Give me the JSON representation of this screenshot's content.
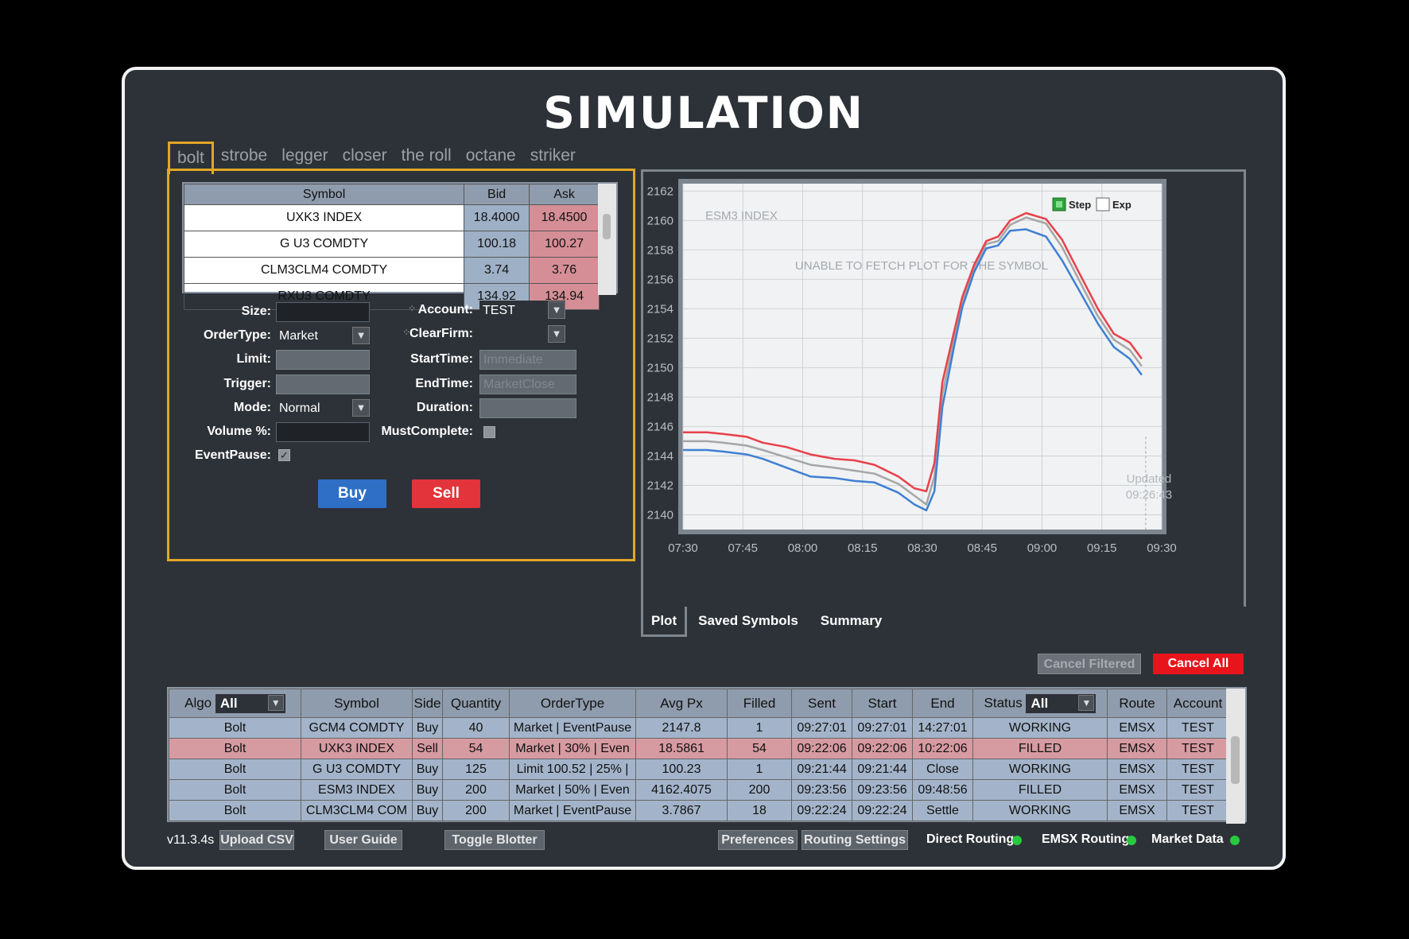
{
  "title": "SIMULATION",
  "algo_tabs": [
    "bolt",
    "strobe",
    "legger",
    "closer",
    "the roll",
    "octane",
    "striker"
  ],
  "symbols": {
    "headers": [
      "Symbol",
      "Bid",
      "Ask"
    ],
    "rows": [
      [
        "UXK3 INDEX",
        "18.4000",
        "18.4500"
      ],
      [
        "G U3 COMDTY",
        "100.18",
        "100.27"
      ],
      [
        "CLM3CLM4 COMDTY",
        "3.74",
        "3.76"
      ],
      [
        "RXU3 COMDTY",
        "134.92",
        "134.94"
      ]
    ]
  },
  "form": {
    "size_label": "Size:",
    "ordertype_label": "OrderType:",
    "ordertype_value": "Market",
    "limit_label": "Limit:",
    "trigger_label": "Trigger:",
    "mode_label": "Mode:",
    "mode_value": "Normal",
    "volume_label": "Volume %:",
    "eventpause_label": "EventPause:",
    "account_label": "Account:",
    "account_value": "TEST",
    "clearfirm_label": "ClearFirm:",
    "starttime_label": "StartTime:",
    "starttime_placeholder": "Immediate",
    "endtime_label": "EndTime:",
    "endtime_placeholder": "MarketClose",
    "duration_label": "Duration:",
    "mustcomplete_label": "MustComplete:",
    "buy_label": "Buy",
    "sell_label": "Sell"
  },
  "plot": {
    "symbol_label": "ESM3 INDEX",
    "error_text": "UNABLE TO FETCH PLOT FOR THE SYMBOL",
    "legend_step": "Step",
    "legend_exp": "Exp",
    "updated_label": "Updated",
    "updated_time": "09:26:43",
    "tabs": [
      "Plot",
      "Saved Symbols",
      "Summary"
    ]
  },
  "chart_data": {
    "type": "line",
    "title": "ESM3 INDEX",
    "x_ticks": [
      "07:30",
      "07:45",
      "08:00",
      "08:15",
      "08:30",
      "08:45",
      "09:00",
      "09:15",
      "09:30"
    ],
    "y_ticks": [
      2162,
      2160,
      2158,
      2156,
      2154,
      2152,
      2150,
      2148,
      2146,
      2144,
      2142,
      2140
    ],
    "ylim": [
      2139,
      2162.5
    ],
    "grid": true,
    "legend_position": "top-right",
    "colors": {
      "red": "#e8414a",
      "gray": "#a6a6a6",
      "blue": "#3f7fd3"
    },
    "x_minutes": [
      0,
      6,
      10,
      16,
      20,
      26,
      32,
      38,
      43,
      48,
      54,
      58,
      61,
      63,
      65,
      68,
      70,
      73,
      76,
      79,
      82,
      86,
      91,
      95,
      99,
      104,
      108,
      112,
      115
    ],
    "series_red": [
      2145.6,
      2145.6,
      2145.5,
      2145.3,
      2144.9,
      2144.6,
      2144.1,
      2143.8,
      2143.7,
      2143.4,
      2142.6,
      2141.8,
      2141.6,
      2143.5,
      2149.0,
      2152.5,
      2154.8,
      2157.0,
      2158.6,
      2158.9,
      2160.0,
      2160.5,
      2160.1,
      2158.7,
      2156.6,
      2154.0,
      2152.3,
      2151.7,
      2150.6
    ],
    "series_gray": [
      2145.0,
      2145.0,
      2144.9,
      2144.7,
      2144.4,
      2143.9,
      2143.4,
      2143.2,
      2143.0,
      2142.8,
      2142.1,
      2141.3,
      2140.7,
      2142.6,
      2148.2,
      2152.0,
      2154.5,
      2156.8,
      2158.4,
      2158.6,
      2159.7,
      2160.2,
      2159.8,
      2158.2,
      2156.1,
      2153.5,
      2151.9,
      2151.2,
      2150.1
    ],
    "series_blue": [
      2144.4,
      2144.4,
      2144.3,
      2144.1,
      2143.8,
      2143.2,
      2142.6,
      2142.5,
      2142.3,
      2142.2,
      2141.5,
      2140.7,
      2140.3,
      2141.6,
      2147.3,
      2151.5,
      2154.1,
      2156.5,
      2158.1,
      2158.3,
      2159.3,
      2159.4,
      2158.9,
      2157.3,
      2155.4,
      2153.0,
      2151.4,
      2150.6,
      2149.5
    ]
  },
  "actions": {
    "cancel_filtered": "Cancel Filtered",
    "cancel_all": "Cancel All"
  },
  "blotter": {
    "algo_header": "Algo",
    "algo_filter": "All",
    "status_header": "Status",
    "status_filter": "All",
    "headers": [
      "Symbol",
      "Side",
      "Quantity",
      "OrderType",
      "Avg Px",
      "Filled",
      "Sent",
      "Start",
      "End",
      "Route",
      "Account"
    ],
    "rows": [
      {
        "state": "working",
        "cells": [
          "Bolt",
          "GCM4 COMDTY",
          "Buy",
          "40",
          "Market | EventPause",
          "2147.8",
          "1",
          "09:27:01",
          "09:27:01",
          "14:27:01",
          "WORKING",
          "EMSX",
          "TEST"
        ]
      },
      {
        "state": "filled",
        "cells": [
          "Bolt",
          "UXK3 INDEX",
          "Sell",
          "54",
          "Market | 30% | Even",
          "18.5861",
          "54",
          "09:22:06",
          "09:22:06",
          "10:22:06",
          "FILLED",
          "EMSX",
          "TEST"
        ]
      },
      {
        "state": "working",
        "cells": [
          "Bolt",
          "G U3 COMDTY",
          "Buy",
          "125",
          "Limit 100.52 | 25% |",
          "100.23",
          "1",
          "09:21:44",
          "09:21:44",
          "Close",
          "WORKING",
          "EMSX",
          "TEST"
        ]
      },
      {
        "state": "filled2",
        "cells": [
          "Bolt",
          "ESM3 INDEX",
          "Buy",
          "200",
          "Market | 50% | Even",
          "4162.4075",
          "200",
          "09:23:56",
          "09:23:56",
          "09:48:56",
          "FILLED",
          "EMSX",
          "TEST"
        ]
      },
      {
        "state": "working",
        "cells": [
          "Bolt",
          "CLM3CLM4 COM",
          "Buy",
          "200",
          "Market | EventPause",
          "3.7867",
          "18",
          "09:22:24",
          "09:22:24",
          "Settle",
          "WORKING",
          "EMSX",
          "TEST"
        ]
      }
    ]
  },
  "footer": {
    "version": "v11.3.4s",
    "upload_csv": "Upload CSV",
    "user_guide": "User Guide",
    "toggle_blotter": "Toggle Blotter",
    "preferences": "Preferences",
    "routing_settings": "Routing Settings",
    "direct_routing": "Direct Routing",
    "emsx_routing": "EMSX Routing",
    "market_data": "Market Data",
    "status_color": "#27c93f"
  }
}
